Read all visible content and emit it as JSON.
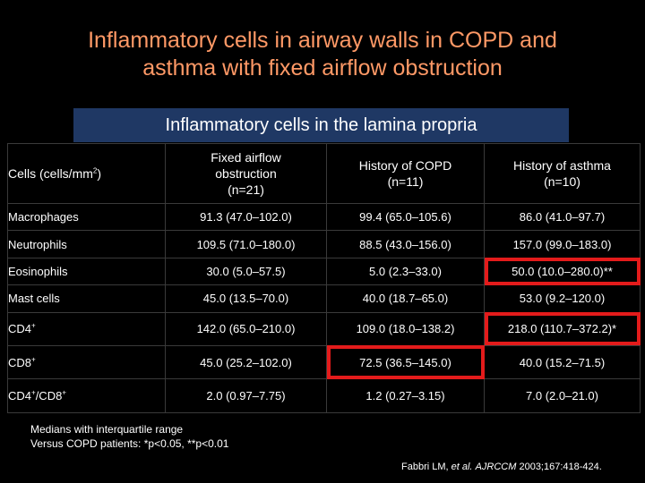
{
  "title": {
    "line1": "Inflammatory cells in airway walls in COPD and",
    "line2": "asthma with fixed airflow obstruction"
  },
  "band_label": "Inflammatory cells in the lamina propria",
  "table": {
    "headers": {
      "col1_main": "Cells (cells/mm",
      "col1_sup": "2",
      "col1_end": ")",
      "col2_line1": "Fixed airflow",
      "col2_line2": "obstruction",
      "col2_line3": "(n=21)",
      "col3_line1": "History of COPD",
      "col3_line2": "(n=11)",
      "col4_line1": "History of asthma",
      "col4_line2": "(n=10)"
    },
    "rows": [
      {
        "label": "Macrophages",
        "label_sup": "",
        "label_tail": "",
        "label_sup2": "",
        "fixed": "91.3 (47.0–102.0)",
        "copd": "99.4 (65.0–105.6)",
        "asthma": "86.0 (41.0–97.7)"
      },
      {
        "label": "Neutrophils",
        "label_sup": "",
        "label_tail": "",
        "label_sup2": "",
        "fixed": "109.5 (71.0–180.0)",
        "copd": "88.5 (43.0–156.0)",
        "asthma": "157.0 (99.0–183.0)"
      },
      {
        "label": "Eosinophils",
        "label_sup": "",
        "label_tail": "",
        "label_sup2": "",
        "fixed": "30.0 (5.0–57.5)",
        "copd": "5.0 (2.3–33.0)",
        "asthma": "50.0 (10.0–280.0)**"
      },
      {
        "label": "Mast cells",
        "label_sup": "",
        "label_tail": "",
        "label_sup2": "",
        "fixed": "45.0 (13.5–70.0)",
        "copd": "40.0 (18.7–65.0)",
        "asthma": "53.0 (9.2–120.0)"
      },
      {
        "label": "CD4",
        "label_sup": "+",
        "label_tail": "",
        "label_sup2": "",
        "fixed": "142.0 (65.0–210.0)",
        "copd": "109.0 (18.0–138.2)",
        "asthma": "218.0 (110.7–372.2)*"
      },
      {
        "label": "CD8",
        "label_sup": "+",
        "label_tail": "",
        "label_sup2": "",
        "fixed": "45.0 (25.2–102.0)",
        "copd": "72.5 (36.5–145.0)",
        "asthma": "40.0 (15.2–71.5)"
      },
      {
        "label": "CD4",
        "label_sup": "+",
        "label_tail": "/CD8",
        "label_sup2": "+",
        "fixed": "2.0 (0.97–7.75)",
        "copd": "1.2 (0.27–3.15)",
        "asthma": "7.0 (2.0–21.0)"
      }
    ]
  },
  "notes": {
    "line1": "Medians with interquartile range",
    "line2": "Versus COPD patients: *p<0.05, **p<0.01"
  },
  "citation": {
    "author": "Fabbri LM, ",
    "etal": "et al.",
    "journal": "AJRCCM",
    "rest": " 2003;167:418-424."
  },
  "colors": {
    "background": "#000000",
    "title": "#ff9966",
    "band": "#1f3864",
    "highlight": "#e31b1b"
  }
}
